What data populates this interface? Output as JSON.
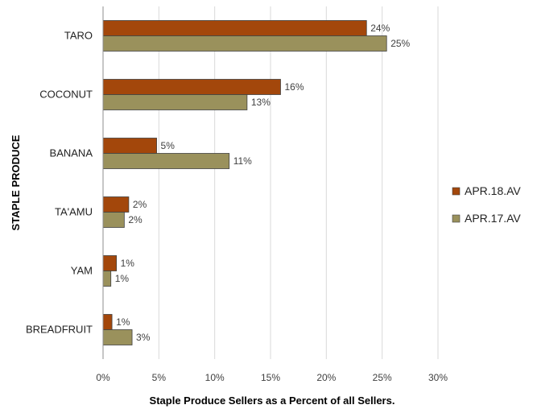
{
  "chart_data": {
    "type": "bar",
    "orientation": "horizontal",
    "categories": [
      "TARO",
      "COCONUT",
      "BANANA",
      "TA'AMU",
      "YAM",
      "BREADFRUIT"
    ],
    "series": [
      {
        "name": "APR.18.AV",
        "color": "#a3470b",
        "values": [
          23.6,
          15.9,
          4.8,
          2.3,
          1.2,
          0.8
        ],
        "labels": [
          "24%",
          "16%",
          "5%",
          "2%",
          "1%",
          "1%"
        ]
      },
      {
        "name": "APR.17.AV",
        "color": "#9a915c",
        "values": [
          25.4,
          12.9,
          11.3,
          1.9,
          0.7,
          2.6
        ],
        "labels": [
          "25%",
          "13%",
          "11%",
          "2%",
          "1%",
          "3%"
        ]
      }
    ],
    "xlim": [
      0,
      30
    ],
    "xticks": [
      "0%",
      "5%",
      "10%",
      "15%",
      "20%",
      "25%",
      "30%"
    ],
    "xlabel": "Staple Produce Sellers as a Percent of all Sellers.",
    "ylabel": "STAPLE PRODUCE",
    "grid": "vertical",
    "legend": "right"
  }
}
